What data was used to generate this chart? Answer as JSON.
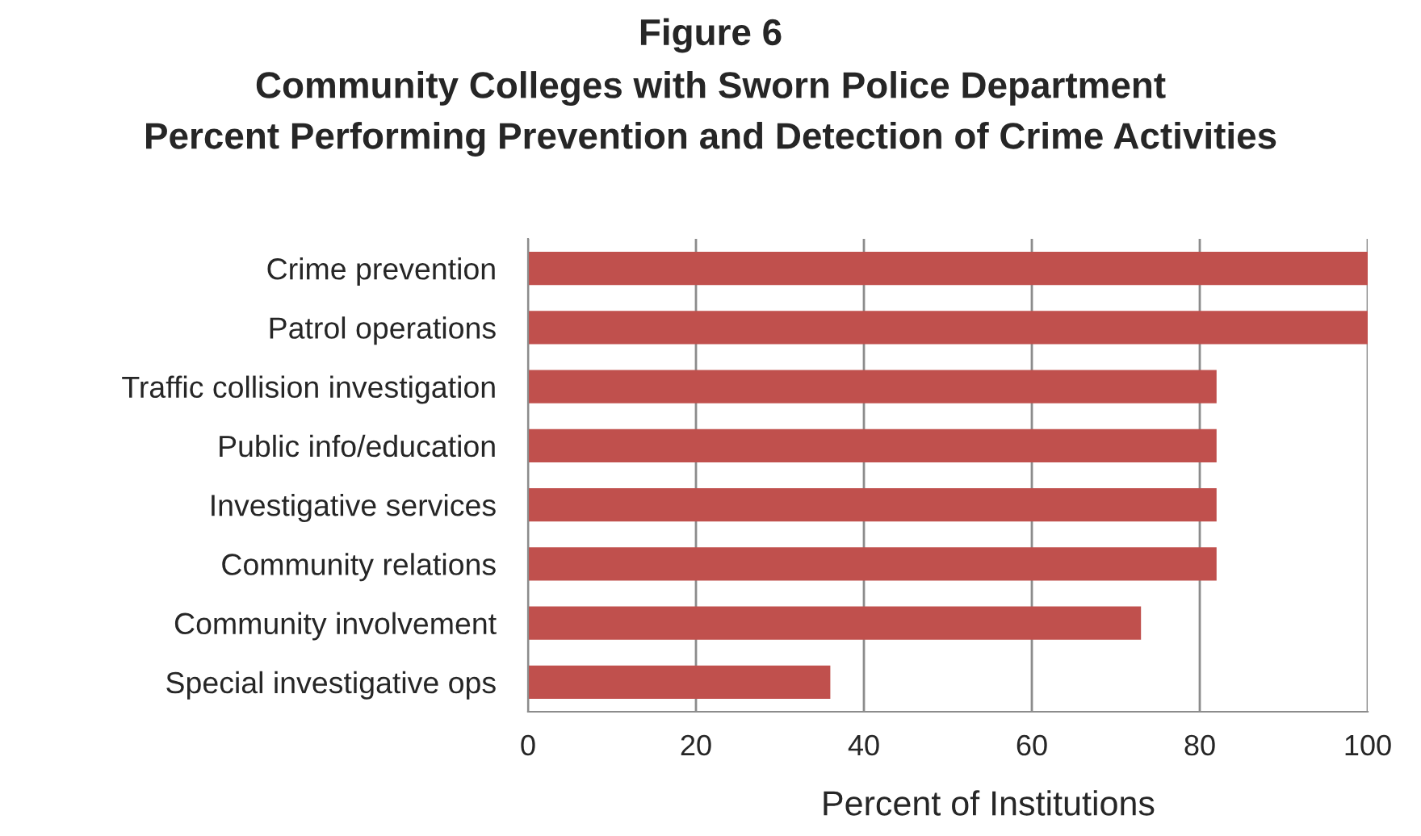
{
  "chart_data": {
    "type": "bar",
    "orientation": "horizontal",
    "title": "Figure 6",
    "subtitle": "Community Colleges with Sworn Police Department\nPercent Performing Prevention and Detection of Crime Activities",
    "xlabel": "Percent of Institutions",
    "categories": [
      "Crime prevention",
      "Patrol operations",
      "Traffic collision investigation",
      "Public info/education",
      "Investigative services",
      "Community relations",
      "Community involvement",
      "Special investigative ops"
    ],
    "values": [
      100,
      100,
      82,
      82,
      82,
      82,
      73,
      36
    ],
    "color": "#c0504d",
    "xlim": [
      0,
      100
    ],
    "xticks": [
      0,
      20,
      40,
      60,
      80,
      100
    ],
    "grid": "x"
  }
}
